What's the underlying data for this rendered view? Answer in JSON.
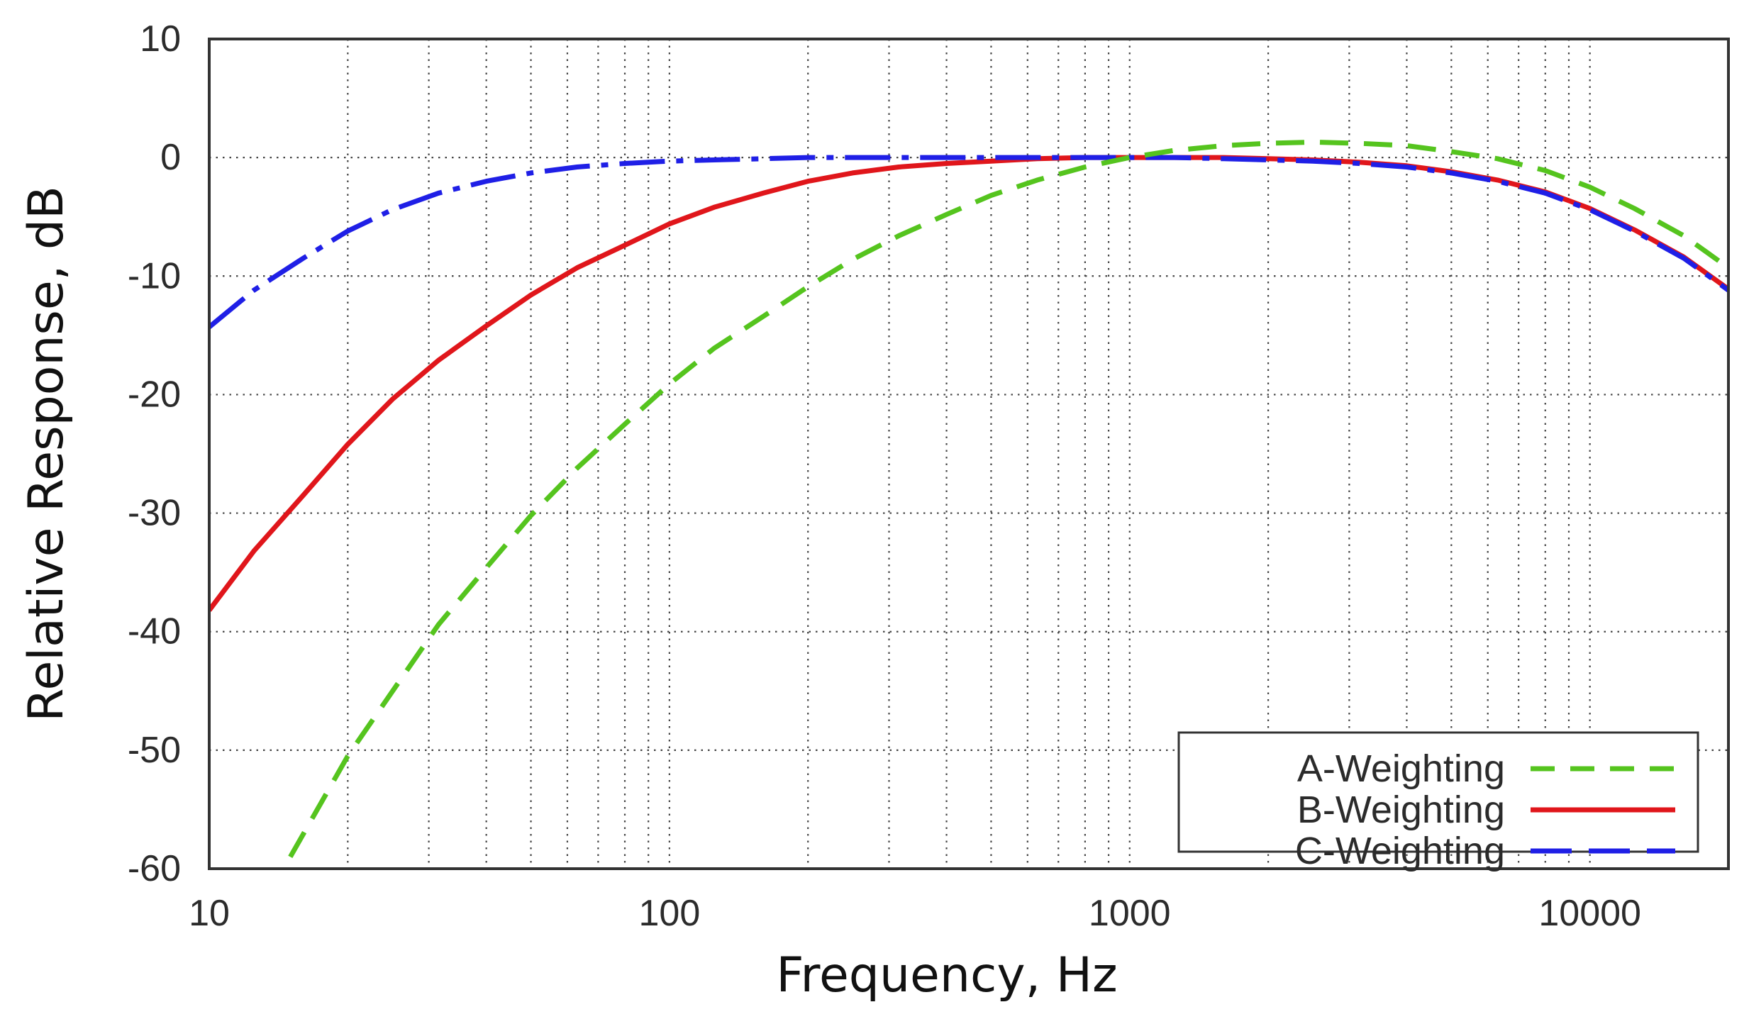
{
  "chart_data": {
    "type": "line",
    "title": "",
    "xlabel": "Frequency, Hz",
    "ylabel": "Relative Response, dB",
    "xscale": "log",
    "xlim": [
      10,
      20000
    ],
    "ylim": [
      -60,
      10
    ],
    "xticks": [
      10,
      100,
      1000,
      10000
    ],
    "xtick_labels": [
      "10",
      "100",
      "1000",
      "10000"
    ],
    "yticks": [
      10,
      0,
      -10,
      -20,
      -30,
      -40,
      -50,
      -60
    ],
    "ytick_labels": [
      "10",
      "0",
      "-10",
      "-20",
      "-30",
      "-40",
      "-50",
      "-60"
    ],
    "grid": true,
    "legend_position": "bottom-right",
    "series": [
      {
        "name": "A-Weighting",
        "color": "#55c41e",
        "style": "dashed",
        "x": [
          15,
          20,
          31.5,
          40,
          50,
          63,
          80,
          100,
          125,
          160,
          200,
          250,
          315,
          400,
          500,
          630,
          800,
          1000,
          1250,
          1600,
          2000,
          2500,
          3150,
          4000,
          5000,
          6300,
          8000,
          10000,
          12500,
          16000,
          20000
        ],
        "y": [
          -59,
          -50.5,
          -39.4,
          -34.6,
          -30.2,
          -26.2,
          -22.5,
          -19.1,
          -16.1,
          -13.4,
          -10.9,
          -8.6,
          -6.6,
          -4.8,
          -3.2,
          -1.9,
          -0.8,
          0,
          0.6,
          1.0,
          1.2,
          1.3,
          1.2,
          1.0,
          0.5,
          -0.1,
          -1.1,
          -2.5,
          -4.3,
          -6.6,
          -9.3
        ]
      },
      {
        "name": "B-Weighting",
        "color": "#e0161b",
        "style": "solid",
        "x": [
          10,
          12.5,
          16,
          20,
          25,
          31.5,
          40,
          50,
          63,
          80,
          100,
          125,
          160,
          200,
          250,
          315,
          400,
          500,
          630,
          800,
          1000,
          1250,
          1600,
          2000,
          2500,
          3150,
          4000,
          5000,
          6300,
          8000,
          10000,
          12500,
          16000,
          20000
        ],
        "y": [
          -38.2,
          -33.2,
          -28.5,
          -24.2,
          -20.4,
          -17.1,
          -14.2,
          -11.6,
          -9.3,
          -7.4,
          -5.6,
          -4.2,
          -3.0,
          -2.0,
          -1.3,
          -0.8,
          -0.5,
          -0.3,
          -0.1,
          0,
          0,
          0,
          0,
          -0.1,
          -0.2,
          -0.4,
          -0.7,
          -1.2,
          -1.9,
          -2.9,
          -4.3,
          -6.1,
          -8.4,
          -11.1
        ]
      },
      {
        "name": "C-Weighting",
        "color": "#1f1fe6",
        "style": "long-dash-dot",
        "x": [
          10,
          12.5,
          16,
          20,
          25,
          31.5,
          40,
          50,
          63,
          80,
          100,
          125,
          160,
          200,
          250,
          315,
          400,
          500,
          630,
          800,
          1000,
          1250,
          1600,
          2000,
          2500,
          3150,
          4000,
          5000,
          6300,
          8000,
          10000,
          12500,
          16000,
          20000
        ],
        "y": [
          -14.3,
          -11.2,
          -8.5,
          -6.2,
          -4.4,
          -3.0,
          -2.0,
          -1.3,
          -0.8,
          -0.5,
          -0.3,
          -0.2,
          -0.1,
          0,
          0,
          0,
          0,
          0,
          0,
          0,
          0,
          0,
          -0.1,
          -0.2,
          -0.3,
          -0.5,
          -0.8,
          -1.3,
          -2.0,
          -3.0,
          -4.4,
          -6.2,
          -8.5,
          -11.2
        ]
      }
    ]
  }
}
